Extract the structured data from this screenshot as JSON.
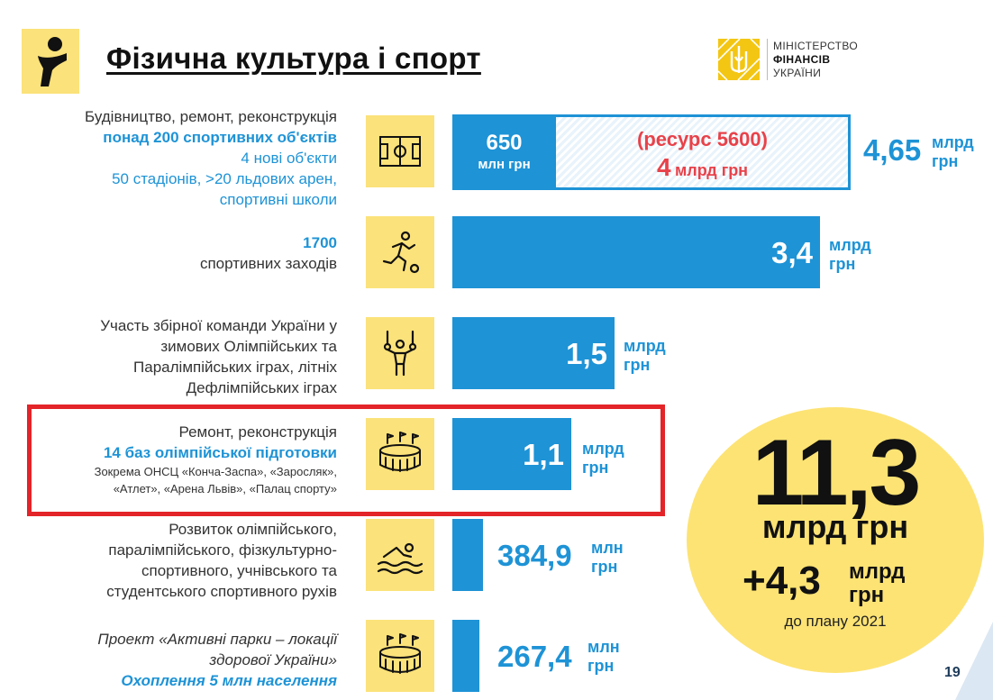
{
  "title": "Фізична культура і спорт",
  "ministry": {
    "line1": "МІНІСТЕРСТВО",
    "line2": "ФІНАНСІВ",
    "line3": "УКРАЇНИ"
  },
  "rows": [
    {
      "lines": [
        "Будівництво, ремонт, реконструкція",
        "понад 200 спортивних об'єктів",
        "4 нові об'єкти",
        "50 стадіонів, >20 льдових арен,",
        "спортивні школи"
      ],
      "icon": "football-field-icon",
      "bar_value": "650",
      "bar_unit": "млн грн",
      "extra_top": "(ресурс 5600)",
      "extra_value": "4",
      "extra_unit": "млрд грн",
      "total_value": "4,65",
      "total_unit_1": "млрд",
      "total_unit_2": "грн"
    },
    {
      "lines": [
        "1700",
        "спортивних заходів"
      ],
      "icon": "runner-icon",
      "value": "3,4",
      "unit_1": "млрд",
      "unit_2": "грн"
    },
    {
      "lines": [
        "Участь  збірної команди України у",
        "зимових Олімпійських та",
        "Паралімпійських іграх, літніх",
        "Дефлімпійських іграх"
      ],
      "icon": "gymnast-rings-icon",
      "value": "1,5",
      "unit_1": "млрд",
      "unit_2": "грн"
    },
    {
      "lines": [
        "Ремонт, реконструкція",
        "14 баз олімпійської підготовки",
        "Зокрема ОНСЦ «Конча-Заспа», «Заросляк»,",
        "«Атлет», «Арена Львів», «Палац спорту»"
      ],
      "icon": "stadium-icon",
      "value": "1,1",
      "unit_1": "млрд",
      "unit_2": "грн"
    },
    {
      "lines": [
        "Розвиток олімпійського,",
        "паралімпійського, фізкультурно-",
        "спортивного, учнівського та",
        "студентського спортивного рухів"
      ],
      "icon": "swimmer-icon",
      "value": "384,9",
      "unit_1": "млн",
      "unit_2": "грн"
    },
    {
      "lines": [
        "Проект  «Активні парки – локації",
        "здорової України»",
        "Охоплення 5 млн населення"
      ],
      "icon": "stadium-icon",
      "value": "267,4",
      "unit_1": "млн",
      "unit_2": "грн"
    }
  ],
  "total": {
    "value": "11,3",
    "unit": "млрд грн",
    "plus_value": "+4,3",
    "plus_unit_1": "млрд",
    "plus_unit_2": "грн",
    "note": "до плану 2021"
  },
  "page_number": "19",
  "colors": {
    "accent_blue": "#1e93d6",
    "yellow": "#fbe27a",
    "circle_yellow": "#fde374",
    "red": "#e32428",
    "hatch_red_text": "#e8424a"
  }
}
